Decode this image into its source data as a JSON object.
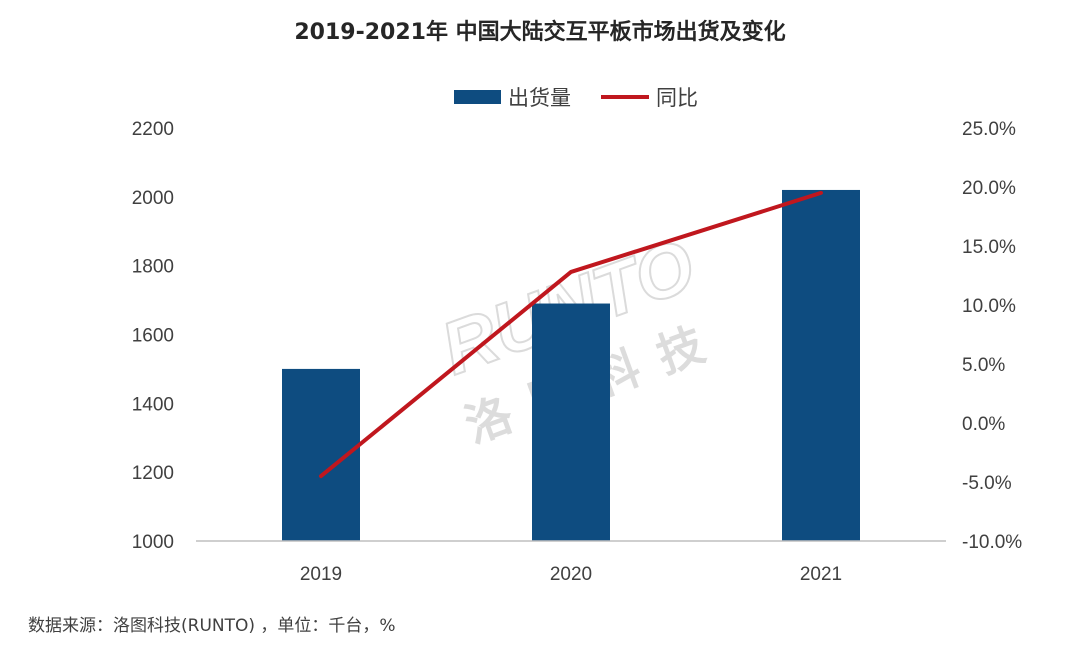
{
  "title": "2019-2021年 中国大陆交互平板市场出货及变化",
  "source_note": "数据来源：洛图科技(RUNTO) ，单位：千台，%",
  "watermark": {
    "latin": "RUNTO",
    "chinese": "洛图科技"
  },
  "colors": {
    "bar": "#0E4C80",
    "line": "#C0171E",
    "axis": "#BFBFBF",
    "text": "#404040"
  },
  "chart_data": {
    "type": "bar",
    "title": "2019-2021年 中国大陆交互平板市场出货及变化",
    "categories": [
      "2019",
      "2020",
      "2021"
    ],
    "series": [
      {
        "name": "出货量",
        "type": "bar",
        "axis": "left",
        "values": [
          1500,
          1690,
          2020
        ]
      },
      {
        "name": "同比",
        "type": "line",
        "axis": "right",
        "values": [
          -4.5,
          12.8,
          19.5
        ]
      }
    ],
    "y_left": {
      "min": 1000,
      "max": 2200,
      "step": 200,
      "ticks": [
        "1000",
        "1200",
        "1400",
        "1600",
        "1800",
        "2000",
        "2200"
      ]
    },
    "y_right": {
      "min": -10,
      "max": 25,
      "step": 5,
      "ticks": [
        "-10.0%",
        "-5.0%",
        "0.0%",
        "5.0%",
        "10.0%",
        "15.0%",
        "20.0%",
        "25.0%"
      ]
    },
    "legend": {
      "position": "top-center",
      "items": [
        "出货量",
        "同比"
      ]
    },
    "grid": false,
    "unit": "千台，%"
  }
}
